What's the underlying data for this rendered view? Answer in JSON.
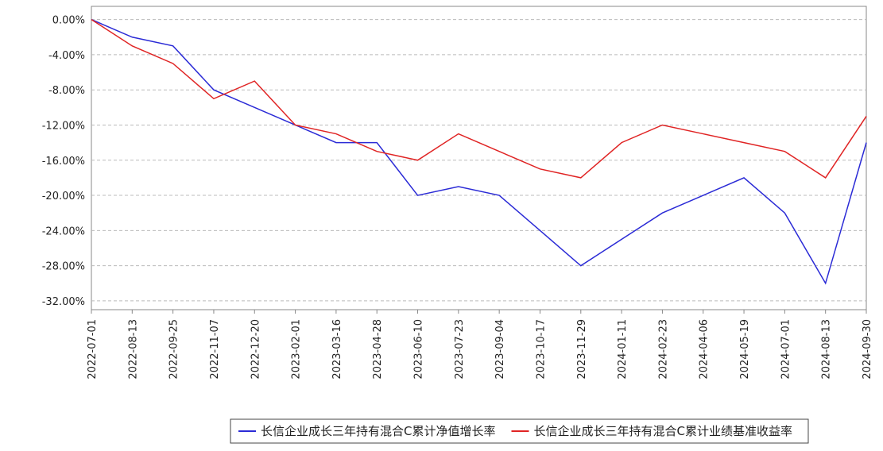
{
  "chart_data": {
    "type": "line",
    "categories": [
      "2022-07-01",
      "2022-08-13",
      "2022-09-25",
      "2022-11-07",
      "2022-12-20",
      "2023-02-01",
      "2023-03-16",
      "2023-04-28",
      "2023-06-10",
      "2023-07-23",
      "2023-09-04",
      "2023-10-17",
      "2023-11-29",
      "2024-01-11",
      "2024-02-23",
      "2024-04-06",
      "2024-05-19",
      "2024-07-01",
      "2024-08-13",
      "2024-09-30"
    ],
    "series": [
      {
        "name": "长信企业成长三年持有混合C累计净值增长率",
        "color": "#2b2bd6",
        "values": [
          0,
          -2,
          -3,
          -8,
          -10,
          -12,
          -14,
          -14,
          -20,
          -19,
          -20,
          -24,
          -28,
          -25,
          -22,
          -20,
          -18,
          -22,
          -30,
          -14
        ]
      },
      {
        "name": "长信企业成长三年持有混合C累计业绩基准收益率",
        "color": "#e02424",
        "values": [
          0,
          -3,
          -5,
          -9,
          -7,
          -12,
          -13,
          -15,
          -16,
          -13,
          -15,
          -17,
          -18,
          -14,
          -12,
          -13,
          -14,
          -15,
          -18,
          -11
        ]
      }
    ],
    "ylim": [
      -33,
      1.5
    ],
    "yticks": [
      {
        "value": 0,
        "label": "0.00%"
      },
      {
        "value": -4,
        "label": "-4.00%"
      },
      {
        "value": -8,
        "label": "-8.00%"
      },
      {
        "value": -12,
        "label": "-12.00%"
      },
      {
        "value": -16,
        "label": "-16.00%"
      },
      {
        "value": -20,
        "label": "-20.00%"
      },
      {
        "value": -24,
        "label": "-24.00%"
      },
      {
        "value": -28,
        "label": "-28.00%"
      },
      {
        "value": -32,
        "label": "-32.00%"
      }
    ],
    "grid": true
  }
}
